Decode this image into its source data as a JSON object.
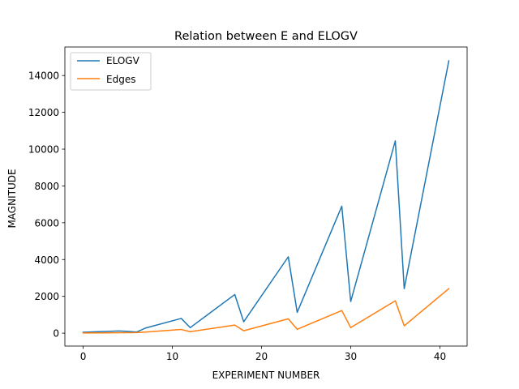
{
  "chart_data": {
    "type": "line",
    "title": "Relation between E and ELOGV",
    "xlabel": "EXPERIMENT NUMBER",
    "ylabel": "MAGNITUDE",
    "xlim": [
      -2.05,
      43.05
    ],
    "ylim": [
      -700,
      15550
    ],
    "xticks": [
      0,
      10,
      20,
      30,
      40
    ],
    "yticks": [
      0,
      2000,
      4000,
      6000,
      8000,
      10000,
      12000,
      14000
    ],
    "grid": false,
    "legend_position": "top-left",
    "series": [
      {
        "name": "ELOGV",
        "color": "#1f77b4",
        "points": [
          [
            0,
            50
          ],
          [
            4,
            120
          ],
          [
            5,
            100
          ],
          [
            6,
            60
          ],
          [
            7,
            280
          ],
          [
            11,
            800
          ],
          [
            12,
            300
          ],
          [
            17,
            2100
          ],
          [
            18,
            620
          ],
          [
            23,
            4150
          ],
          [
            24,
            1130
          ],
          [
            29,
            6900
          ],
          [
            30,
            1720
          ],
          [
            35,
            10450
          ],
          [
            36,
            2420
          ],
          [
            41,
            14800
          ]
        ]
      },
      {
        "name": "Edges",
        "color": "#ff7f0e",
        "points": [
          [
            0,
            10
          ],
          [
            6,
            30
          ],
          [
            7,
            60
          ],
          [
            11,
            200
          ],
          [
            12,
            80
          ],
          [
            17,
            440
          ],
          [
            18,
            130
          ],
          [
            23,
            780
          ],
          [
            24,
            210
          ],
          [
            29,
            1230
          ],
          [
            30,
            300
          ],
          [
            35,
            1760
          ],
          [
            36,
            400
          ],
          [
            41,
            2420
          ]
        ]
      }
    ]
  }
}
